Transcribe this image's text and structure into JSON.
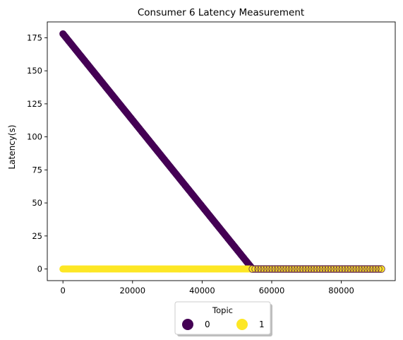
{
  "chart_data": {
    "type": "scatter",
    "title": "Consumer 6 Latency Measurement",
    "xlabel": "",
    "ylabel": "Latency(s)",
    "xlim": [
      -4500,
      95500
    ],
    "ylim": [
      -8.8,
      187
    ],
    "xticks": [
      0,
      20000,
      40000,
      60000,
      80000
    ],
    "yticks": [
      0,
      25,
      50,
      75,
      100,
      125,
      150,
      175
    ],
    "grid": false,
    "legend": {
      "title": "Topic",
      "placement": "bottom-center",
      "entries": [
        "0",
        "1"
      ]
    },
    "series": [
      {
        "name": "0",
        "color": "#440154",
        "segments": [
          {
            "from": [
              0,
              178
            ],
            "to": [
              54500,
              0
            ]
          },
          {
            "from": [
              54500,
              0
            ],
            "to": [
              91500,
              0
            ],
            "dense_mixed": true
          }
        ]
      },
      {
        "name": "1",
        "color": "#fde725",
        "segments": [
          {
            "from": [
              0,
              0
            ],
            "to": [
              91500,
              0
            ]
          }
        ]
      }
    ]
  }
}
